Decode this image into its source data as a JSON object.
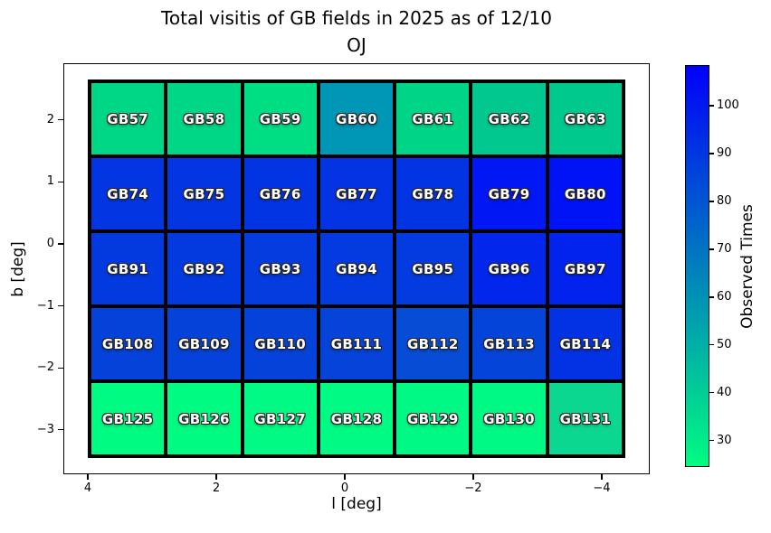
{
  "title": {
    "line1": "Total visitis of GB fields in 2025 as of 12/10",
    "line2": "OJ"
  },
  "axes": {
    "x_ticks": [
      {
        "label": "4",
        "value": 4
      },
      {
        "label": "2",
        "value": 2
      },
      {
        "label": "0",
        "value": 0
      },
      {
        "label": "−2",
        "value": -2
      },
      {
        "label": "−4",
        "value": -4
      }
    ],
    "y_ticks": [
      {
        "label": "2",
        "value": 2
      },
      {
        "label": "1",
        "value": 1
      },
      {
        "label": "0",
        "value": 0
      },
      {
        "label": "−1",
        "value": -1
      },
      {
        "label": "−2",
        "value": -2
      },
      {
        "label": "−3",
        "value": -3
      }
    ]
  },
  "colorbar": {
    "label": "Observed Times",
    "ticks": [
      {
        "label": "100",
        "value": 100
      },
      {
        "label": "90",
        "value": 90
      },
      {
        "label": "80",
        "value": 80
      },
      {
        "label": "70",
        "value": 70
      },
      {
        "label": "60",
        "value": 60
      },
      {
        "label": "50",
        "value": 50
      },
      {
        "label": "40",
        "value": 40
      },
      {
        "label": "30",
        "value": 30
      }
    ],
    "top_color": "#0000fb",
    "bottom_color": "#00fc81"
  },
  "chart_data": {
    "type": "heatmap",
    "title": "Total visitis of GB fields in 2025 as of 12/10 OJ",
    "xlabel": "l [deg]",
    "ylabel": "b [deg]",
    "colorbar_label": "Observed Times",
    "colormap": "winter_r",
    "value_range": [
      24.5,
      108.5
    ],
    "x_axis_reversed": true,
    "x_tick_values": [
      4,
      2,
      0,
      -2,
      -4
    ],
    "y_tick_values": [
      2,
      1,
      0,
      -1,
      -2,
      -3
    ],
    "column_l_centers": [
      3.4,
      2.2,
      1.0,
      -0.2,
      -1.4,
      -2.6,
      -3.8
    ],
    "row_b_centers": [
      2.0,
      0.8,
      -0.4,
      -1.6,
      -2.8
    ],
    "rows": [
      {
        "b_center": 2.0,
        "cells": [
          {
            "label": "GB57",
            "value": 37,
            "color": "#00d786"
          },
          {
            "label": "GB58",
            "value": 37,
            "color": "#00d786"
          },
          {
            "label": "GB59",
            "value": 35,
            "color": "#00de84"
          },
          {
            "label": "GB60",
            "value": 59,
            "color": "#0096b5"
          },
          {
            "label": "GB61",
            "value": 37,
            "color": "#00d487"
          },
          {
            "label": "GB62",
            "value": 42,
            "color": "#00c88e"
          },
          {
            "label": "GB63",
            "value": 42,
            "color": "#00c98d"
          }
        ]
      },
      {
        "b_center": 0.8,
        "cells": [
          {
            "label": "GB74",
            "value": 91,
            "color": "#0336e2"
          },
          {
            "label": "GB75",
            "value": 91,
            "color": "#0336e2"
          },
          {
            "label": "GB76",
            "value": 92,
            "color": "#0334e3"
          },
          {
            "label": "GB77",
            "value": 92,
            "color": "#0333e3"
          },
          {
            "label": "GB78",
            "value": 92,
            "color": "#0334e3"
          },
          {
            "label": "GB79",
            "value": 101,
            "color": "#0117f4"
          },
          {
            "label": "GB80",
            "value": 102,
            "color": "#0013f6"
          }
        ]
      },
      {
        "b_center": -0.4,
        "cells": [
          {
            "label": "GB91",
            "value": 90,
            "color": "#033ae0"
          },
          {
            "label": "GB92",
            "value": 90,
            "color": "#033ae0"
          },
          {
            "label": "GB93",
            "value": 89,
            "color": "#043ce0"
          },
          {
            "label": "GB94",
            "value": 90,
            "color": "#033be0"
          },
          {
            "label": "GB95",
            "value": 90,
            "color": "#043be0"
          },
          {
            "label": "GB96",
            "value": 97,
            "color": "#0226ec"
          },
          {
            "label": "GB97",
            "value": 98,
            "color": "#0223ee"
          }
        ]
      },
      {
        "b_center": -1.6,
        "cells": [
          {
            "label": "GB108",
            "value": 87,
            "color": "#0542d9"
          },
          {
            "label": "GB109",
            "value": 87,
            "color": "#0542d9"
          },
          {
            "label": "GB110",
            "value": 87,
            "color": "#0542d9"
          },
          {
            "label": "GB111",
            "value": 86,
            "color": "#0543d9"
          },
          {
            "label": "GB112",
            "value": 84,
            "color": "#064cd4"
          },
          {
            "label": "GB113",
            "value": 86,
            "color": "#0544d8"
          },
          {
            "label": "GB114",
            "value": 92,
            "color": "#0332e4"
          }
        ]
      },
      {
        "b_center": -2.8,
        "cells": [
          {
            "label": "GB125",
            "value": 26,
            "color": "#00fb82"
          },
          {
            "label": "GB126",
            "value": 26,
            "color": "#00fb82"
          },
          {
            "label": "GB127",
            "value": 26,
            "color": "#00fa83"
          },
          {
            "label": "GB128",
            "value": 26,
            "color": "#00fa83"
          },
          {
            "label": "GB129",
            "value": 26,
            "color": "#00f984"
          },
          {
            "label": "GB130",
            "value": 26,
            "color": "#00f884"
          },
          {
            "label": "GB131",
            "value": 38,
            "color": "#0cd791"
          }
        ]
      }
    ]
  }
}
